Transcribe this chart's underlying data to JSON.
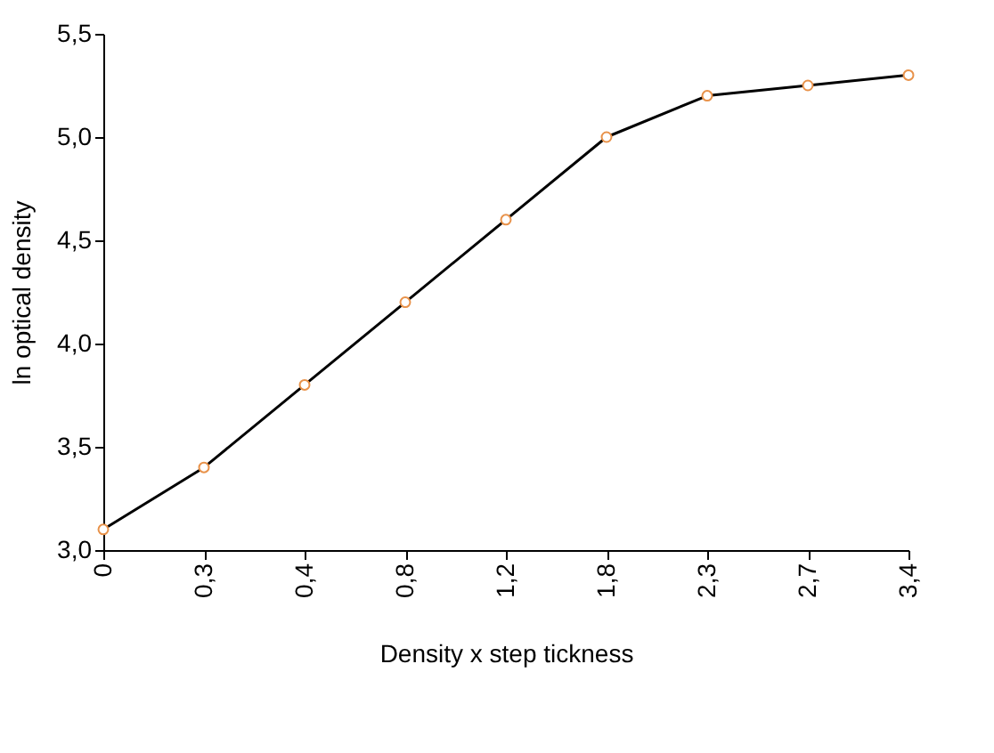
{
  "chart_data": {
    "type": "line",
    "xlabel": "Density x step tickness",
    "ylabel": "ln optical density",
    "categories": [
      "0",
      "0,3",
      "0,4",
      "0,8",
      "1,2",
      "1,8",
      "2,3",
      "2,7",
      "3,4"
    ],
    "series": [
      {
        "color": "#000000",
        "values": [
          3.1,
          3.4,
          3.8,
          4.2,
          4.6,
          5.0,
          5.2,
          5.25,
          5.3
        ]
      }
    ],
    "ylim": [
      3.0,
      5.5
    ],
    "yticks": [
      {
        "value": 3.0,
        "label": "3,0"
      },
      {
        "value": 3.5,
        "label": "3,5"
      },
      {
        "value": 4.0,
        "label": "4,0"
      },
      {
        "value": 4.5,
        "label": "4,5"
      },
      {
        "value": 5.0,
        "label": "5,0"
      },
      {
        "value": 5.5,
        "label": "5,5"
      }
    ],
    "grid": false,
    "marker": "circle",
    "line_style": "solid"
  }
}
